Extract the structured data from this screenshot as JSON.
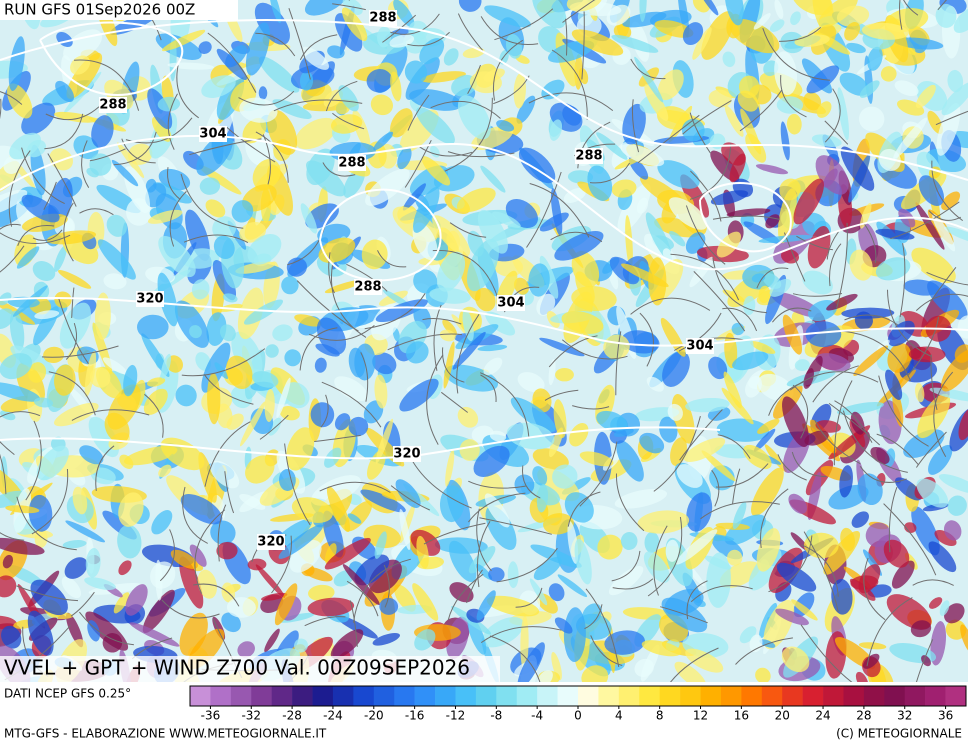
{
  "header": {
    "run": "RUN GFS 01Sep2026 00Z"
  },
  "map": {
    "contour_labels": [
      288,
      288,
      304,
      288,
      288,
      288,
      320,
      304,
      304,
      320,
      320
    ]
  },
  "caption": {
    "title": "VVEL + GPT + WIND Z700 Val. 00Z09SEP2026",
    "source": "DATI NCEP GFS 0.25°"
  },
  "colorbar": {
    "colors": [
      "#c890d8",
      "#b070c8",
      "#9858b0",
      "#803c98",
      "#602888",
      "#3c1c80",
      "#1c1c90",
      "#1830b0",
      "#1848d0",
      "#2060e0",
      "#2878f0",
      "#3090f8",
      "#38a8f8",
      "#48c0f8",
      "#60d0f0",
      "#80e0f0",
      "#a0ecf4",
      "#c8f4f8",
      "#e8fcfc",
      "#fffce0",
      "#fff8a0",
      "#fff070",
      "#ffe840",
      "#ffd820",
      "#ffc810",
      "#ffb000",
      "#ff9800",
      "#ff7800",
      "#f85810",
      "#e83820",
      "#d82030",
      "#c01838",
      "#a81040",
      "#901048",
      "#801050",
      "#901860",
      "#a02070",
      "#b03080"
    ],
    "ticks": [
      -36,
      -32,
      -28,
      -24,
      -20,
      -16,
      -12,
      -8,
      -4,
      0,
      4,
      8,
      12,
      16,
      20,
      24,
      28,
      32,
      36
    ]
  },
  "footer": {
    "left": "MTG-GFS - ELABORAZIONE WWW.METEOGIORNALE.IT",
    "right": "(C) METEOGIORNALE"
  }
}
